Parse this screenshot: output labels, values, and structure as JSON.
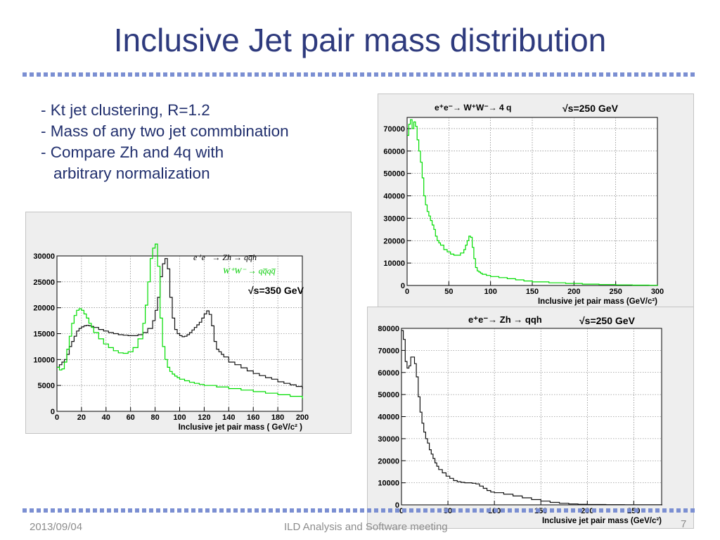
{
  "slide": {
    "title": "Inclusive Jet pair mass distribution",
    "bullets": [
      "- Kt jet clustering, R=1.2",
      "- Mass of any two jet commbination",
      "- Compare Zh and 4q with",
      "arbitrary normalization"
    ],
    "footer": {
      "date": "2013/09/04",
      "event": "ILD Analysis and Software meeting",
      "page": "7"
    }
  },
  "chart_data": [
    {
      "type": "line",
      "xlabel": "Inclusive jet pair mass ( GeV/c² )",
      "x_ticks": [
        0,
        20,
        40,
        60,
        80,
        100,
        120,
        140,
        160,
        180,
        200
      ],
      "y_ticks": [
        0,
        5000,
        10000,
        15000,
        20000,
        25000,
        30000
      ],
      "xlim": [
        0,
        200
      ],
      "ylim": [
        0,
        30000
      ],
      "grid": true,
      "annotations": [
        "e⁺e⁻ → Zh → qq̅h",
        "W⁺W⁻ → qq̅qq̅",
        "√s=350 GeV"
      ],
      "series": [
        {
          "color": "#111111",
          "x": [
            0,
            2,
            4,
            6,
            8,
            10,
            12,
            14,
            16,
            18,
            20,
            22,
            24,
            26,
            28,
            30,
            34,
            38,
            42,
            46,
            50,
            54,
            58,
            62,
            66,
            70,
            74,
            78,
            80,
            82,
            84,
            86,
            88,
            90,
            92,
            94,
            96,
            98,
            100,
            102,
            104,
            106,
            108,
            110,
            112,
            114,
            116,
            118,
            120,
            122,
            124,
            126,
            128,
            130,
            132,
            134,
            136,
            140,
            145,
            150,
            155,
            160,
            165,
            170,
            175,
            180,
            185,
            190,
            195,
            200
          ],
          "values": [
            8500,
            9000,
            9500,
            10000,
            11000,
            12500,
            13500,
            14500,
            15500,
            16000,
            16300,
            16500,
            16600,
            16500,
            16400,
            16200,
            15800,
            15500,
            15200,
            15000,
            14800,
            14700,
            14600,
            14600,
            14800,
            15200,
            16000,
            17500,
            19500,
            22000,
            26000,
            28500,
            29500,
            27500,
            22000,
            18000,
            15800,
            15000,
            14600,
            14400,
            14500,
            14800,
            15200,
            15700,
            16200,
            16700,
            17200,
            18000,
            18800,
            19400,
            18700,
            16500,
            13500,
            12000,
            11500,
            11000,
            10500,
            9500,
            9000,
            8400,
            7800,
            7300,
            6900,
            6500,
            6200,
            5700,
            5400,
            5100,
            4800,
            4500
          ]
        },
        {
          "color": "#00dd00",
          "x": [
            0,
            2,
            4,
            6,
            8,
            10,
            12,
            14,
            16,
            18,
            20,
            22,
            24,
            26,
            28,
            30,
            34,
            38,
            42,
            46,
            50,
            54,
            58,
            62,
            66,
            70,
            72,
            74,
            76,
            78,
            80,
            82,
            84,
            86,
            88,
            90,
            92,
            94,
            96,
            98,
            100,
            104,
            108,
            112,
            116,
            120,
            130,
            140,
            150,
            160,
            170,
            180,
            190,
            200
          ],
          "values": [
            8500,
            8000,
            8200,
            9500,
            12000,
            14500,
            17000,
            18500,
            19500,
            19800,
            19500,
            18800,
            18000,
            17000,
            16200,
            15200,
            14000,
            13000,
            12300,
            11700,
            11300,
            11200,
            11500,
            12300,
            14000,
            17000,
            20500,
            25000,
            29500,
            31500,
            32300,
            28000,
            18000,
            12500,
            10000,
            8500,
            7700,
            7200,
            6800,
            6500,
            6200,
            5900,
            5600,
            5400,
            5200,
            5000,
            4700,
            4400,
            4100,
            3800,
            3500,
            3200,
            2900,
            2500
          ]
        }
      ]
    },
    {
      "type": "line",
      "xlabel": "Inclusive jet pair mass (GeV/c²)",
      "x_ticks": [
        0,
        50,
        100,
        150,
        200,
        250,
        300
      ],
      "y_ticks": [
        0,
        10000,
        20000,
        30000,
        40000,
        50000,
        60000,
        70000
      ],
      "xlim": [
        0,
        300
      ],
      "ylim": [
        0,
        75000
      ],
      "grid": true,
      "annotations": [
        "e⁺e⁻→ W⁺W⁻→ 4 q",
        "√s=250 GeV"
      ],
      "series": [
        {
          "color": "#00dd00",
          "x": [
            0,
            2,
            4,
            6,
            8,
            10,
            12,
            14,
            16,
            18,
            20,
            22,
            24,
            26,
            28,
            30,
            32,
            34,
            36,
            38,
            40,
            44,
            48,
            52,
            56,
            60,
            64,
            68,
            70,
            72,
            74,
            76,
            78,
            80,
            82,
            84,
            86,
            88,
            90,
            95,
            100,
            110,
            120,
            130,
            140,
            150,
            170,
            190,
            210,
            230,
            250,
            270,
            290,
            300
          ],
          "values": [
            67000,
            72000,
            74000,
            70000,
            73000,
            71000,
            65000,
            60000,
            55000,
            48000,
            40000,
            36000,
            33000,
            31000,
            29000,
            27000,
            25000,
            22000,
            20000,
            19000,
            18000,
            16000,
            15000,
            14000,
            13500,
            13500,
            14500,
            16000,
            18000,
            20000,
            22000,
            21500,
            17000,
            12000,
            8000,
            6500,
            6000,
            5500,
            5000,
            4500,
            4000,
            3500,
            3000,
            2500,
            2000,
            1600,
            1200,
            900,
            600,
            400,
            250,
            150,
            80,
            50
          ]
        }
      ]
    },
    {
      "type": "line",
      "xlabel": "Inclusive jet pair mass (GeV/c²)",
      "x_ticks": [
        0,
        50,
        100,
        150,
        200,
        250
      ],
      "y_ticks": [
        0,
        10000,
        20000,
        30000,
        40000,
        50000,
        60000,
        70000,
        80000
      ],
      "xlim": [
        0,
        280
      ],
      "ylim": [
        0,
        80000
      ],
      "grid": true,
      "annotations": [
        "e⁺e⁻→ Zh → qqh",
        "√s=250 GeV"
      ],
      "series": [
        {
          "color": "#111111",
          "x": [
            0,
            2,
            4,
            6,
            8,
            10,
            12,
            14,
            16,
            18,
            20,
            22,
            24,
            26,
            28,
            30,
            32,
            34,
            36,
            38,
            40,
            44,
            48,
            52,
            56,
            60,
            64,
            68,
            72,
            76,
            80,
            84,
            88,
            92,
            96,
            100,
            110,
            120,
            130,
            140,
            150,
            160,
            170,
            180,
            190,
            200,
            220,
            240,
            260,
            280
          ],
          "values": [
            79000,
            75000,
            65000,
            62000,
            63000,
            67000,
            67000,
            64000,
            58000,
            49000,
            42000,
            37000,
            33000,
            30000,
            28000,
            25000,
            23000,
            21000,
            19000,
            17500,
            16000,
            14500,
            13000,
            12000,
            11000,
            10500,
            10200,
            10000,
            10000,
            9800,
            9500,
            8500,
            7500,
            6500,
            5800,
            5500,
            4800,
            4000,
            3200,
            2400,
            1700,
            1100,
            700,
            400,
            250,
            150,
            80,
            40,
            20,
            0
          ]
        }
      ]
    }
  ]
}
